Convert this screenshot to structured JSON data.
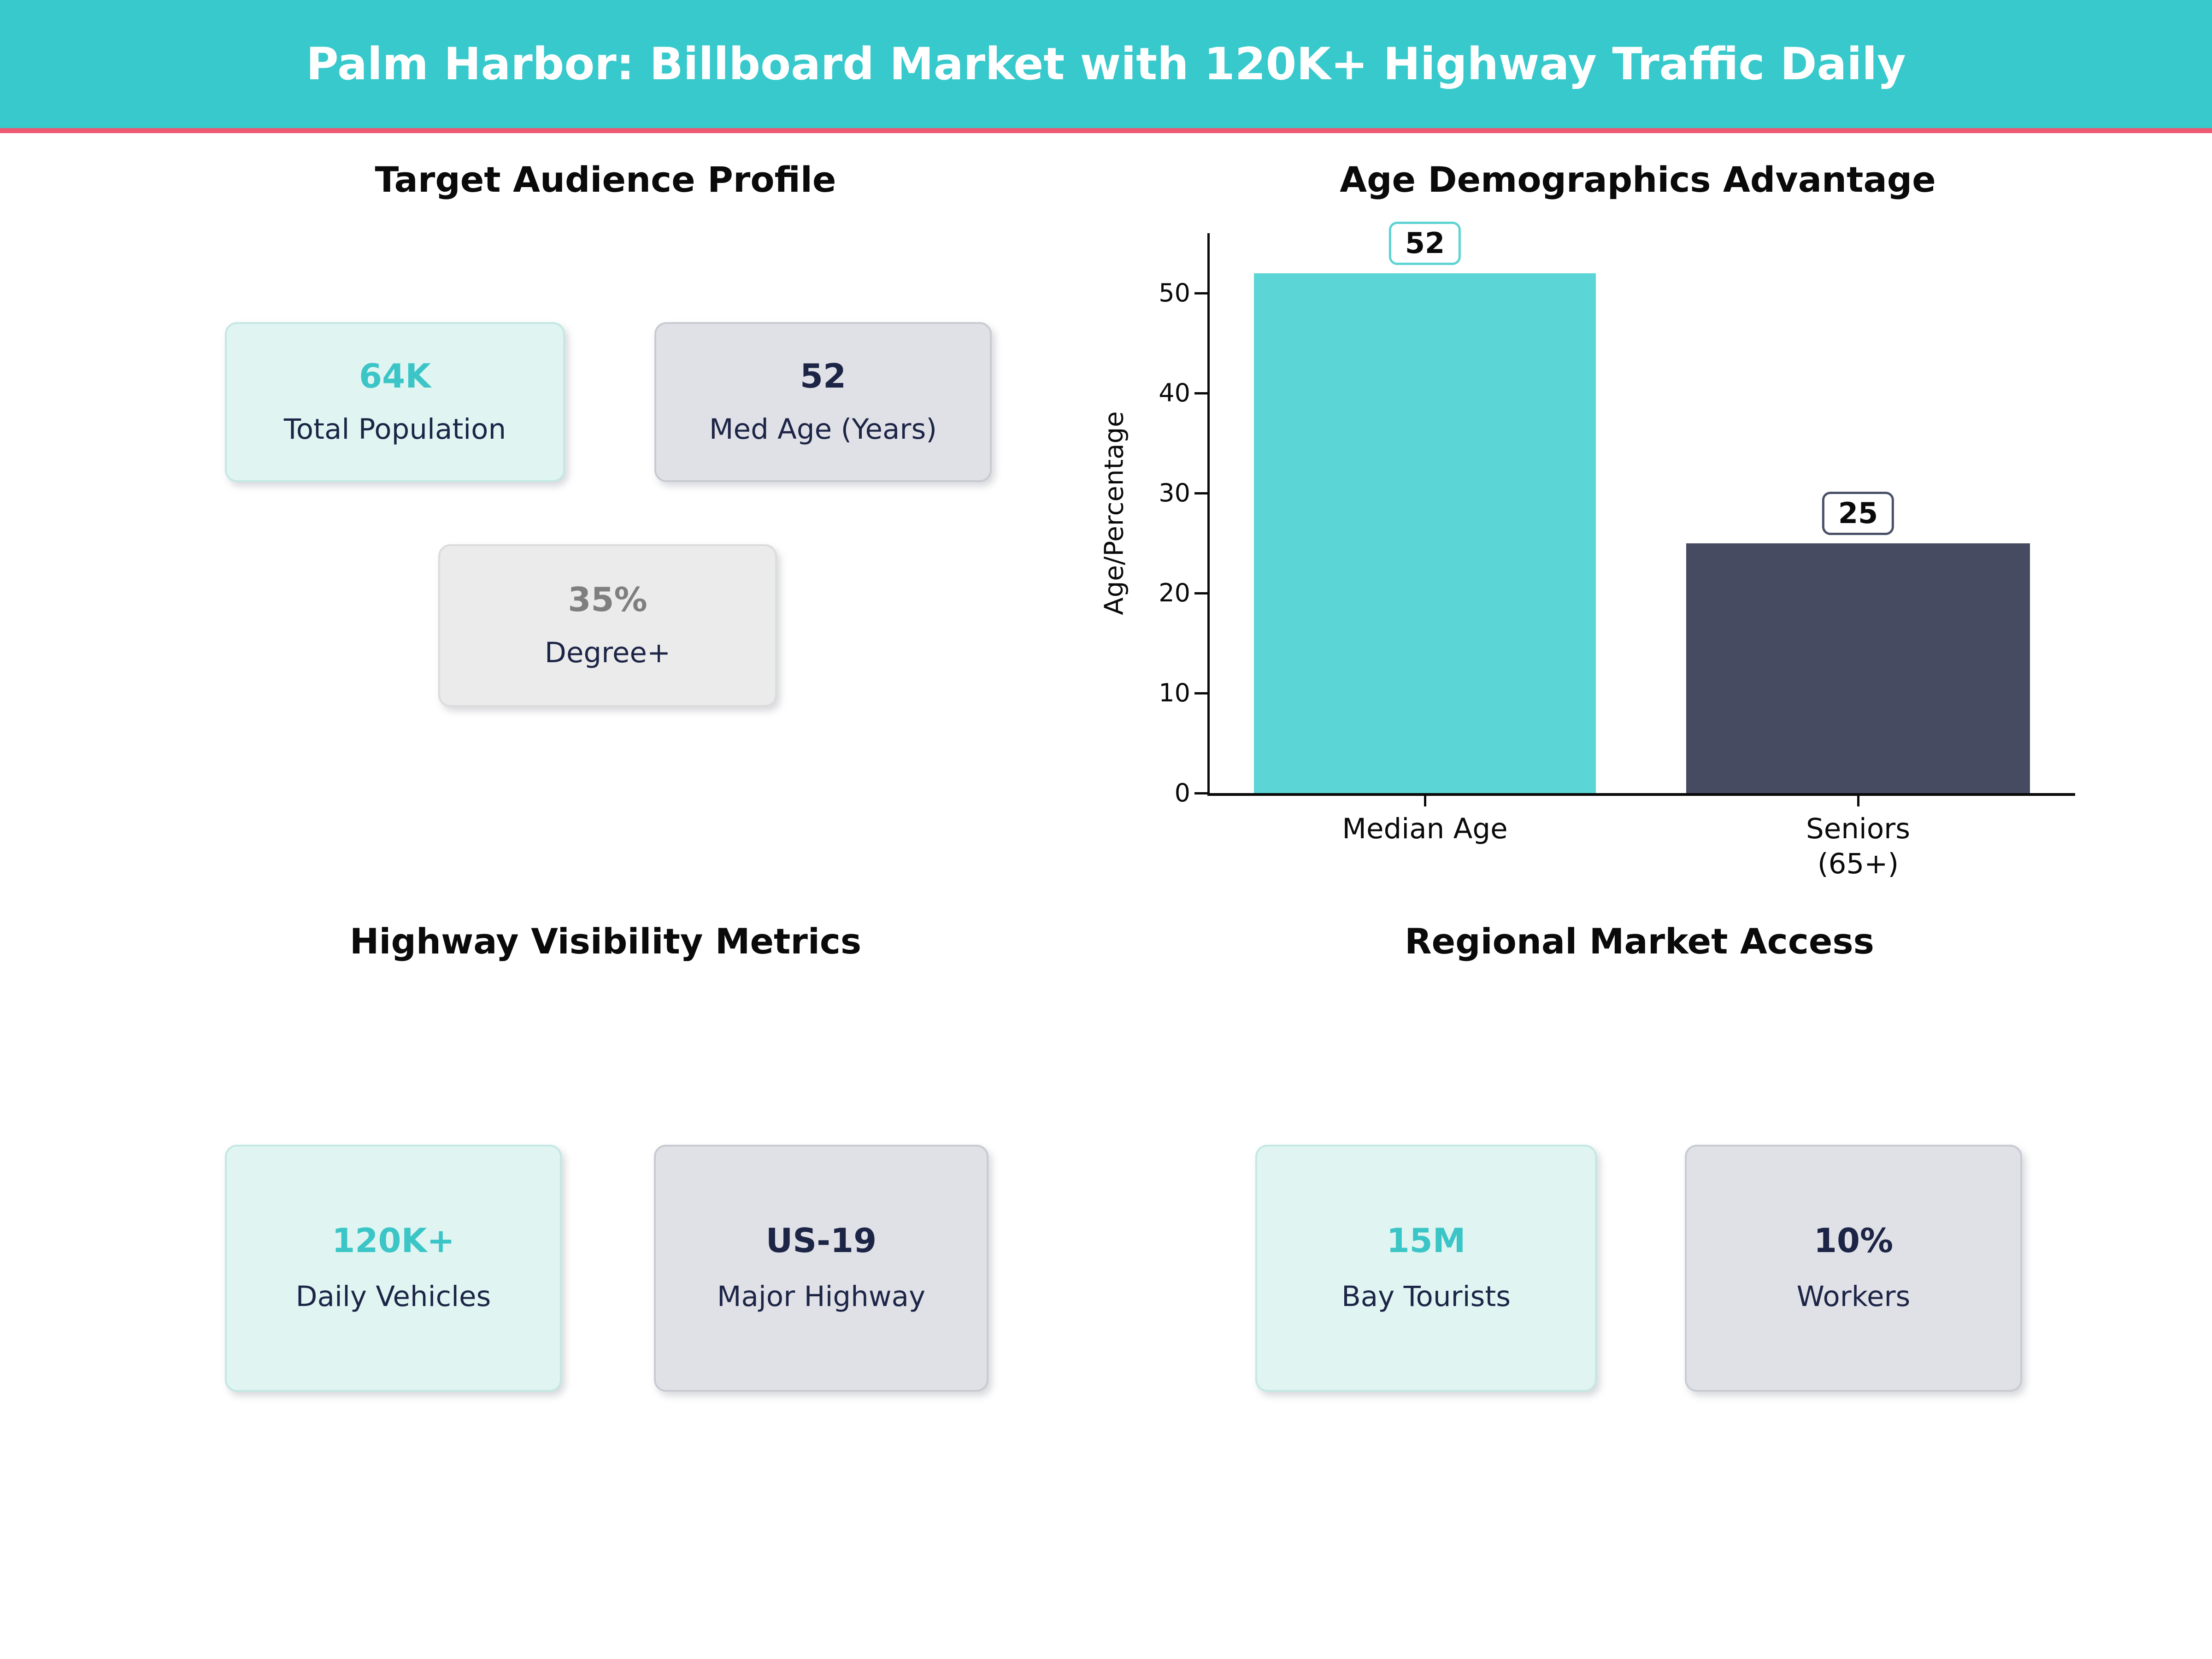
{
  "header": {
    "title": "Palm Harbor: Billboard Market with 120K+ Highway Traffic Daily"
  },
  "colors": {
    "header_bg": "#38c9cc",
    "accent_line": "#ec5b73",
    "teal_value_text": "#3cc5c7",
    "navy_text": "#1d2547",
    "gray_value_text": "#7f7f7f",
    "mint_card_bg": "#e0f5f2",
    "mint_card_border": "#c4e8e4",
    "gray_card_bg": "#e0e1e6",
    "gray_card_border": "#c9cbd3",
    "light_card_bg": "#ebebeb",
    "light_card_border": "#dcdcdc",
    "bar_teal": "#5bd5d5",
    "bar_slate": "#474b61"
  },
  "sections": {
    "audience": {
      "title": "Target Audience Profile",
      "cards": [
        {
          "value": "64K",
          "label": "Total Population"
        },
        {
          "value": "52",
          "label": "Med Age (Years)"
        },
        {
          "value": "35%",
          "label": "Degree+"
        }
      ]
    },
    "highway": {
      "title": "Highway Visibility Metrics",
      "cards": [
        {
          "value": "120K+",
          "label": "Daily Vehicles"
        },
        {
          "value": "US-19",
          "label": "Major Highway"
        }
      ]
    },
    "regional": {
      "title": "Regional Market Access",
      "cards": [
        {
          "value": "15M",
          "label": "Bay Tourists"
        },
        {
          "value": "10%",
          "label": "Workers"
        }
      ]
    }
  },
  "chart_data": {
    "type": "bar",
    "title": "Age Demographics Advantage",
    "xlabel": "",
    "ylabel": "Age/Percentage",
    "categories": [
      [
        "Median Age"
      ],
      [
        "Seniors",
        "(65+)"
      ]
    ],
    "values": [
      52,
      25
    ],
    "data_labels": [
      "52",
      "25"
    ],
    "bar_colors": [
      "#5bd5d5",
      "#474b61"
    ],
    "annotation_borders": [
      "#5ed3d3",
      "#4a5168"
    ],
    "yticks": [
      0,
      10,
      20,
      30,
      40,
      50
    ],
    "ylim": [
      0,
      56
    ],
    "grid": false,
    "legend_position": "none"
  }
}
